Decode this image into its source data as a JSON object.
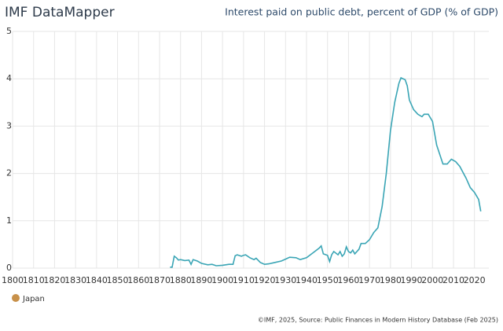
{
  "chart_data": {
    "type": "line",
    "title": "IMF DataMapper",
    "subtitle": "Interest paid on public debt, percent of GDP (% of GDP)",
    "source": "©IMF, 2025, Source: Public Finances in Modern History Database (Feb 2025)",
    "xlim": [
      1800,
      2024
    ],
    "xticks": [
      1800,
      1810,
      1820,
      1830,
      1840,
      1850,
      1860,
      1870,
      1880,
      1890,
      1900,
      1910,
      1920,
      1930,
      1940,
      1950,
      1960,
      1970,
      1980,
      1990,
      2000,
      2010,
      2020
    ],
    "ylim": [
      0,
      5
    ],
    "yticks": [
      0,
      1,
      2,
      3,
      4,
      5
    ],
    "grid": true,
    "x": [
      1875,
      1876,
      1877,
      1878,
      1879,
      1880,
      1882,
      1884,
      1885,
      1886,
      1888,
      1890,
      1893,
      1895,
      1897,
      1900,
      1903,
      1905,
      1906,
      1907,
      1909,
      1910,
      1911,
      1913,
      1915,
      1916,
      1918,
      1920,
      1922,
      1925,
      1928,
      1930,
      1932,
      1935,
      1937,
      1940,
      1943,
      1946,
      1947,
      1948,
      1950,
      1951,
      1952,
      1953,
      1955,
      1956,
      1957,
      1958,
      1959,
      1960,
      1961,
      1962,
      1963,
      1965,
      1966,
      1968,
      1970,
      1972,
      1974,
      1976,
      1978,
      1980,
      1982,
      1984,
      1985,
      1987,
      1988,
      1989,
      1991,
      1993,
      1995,
      1996,
      1998,
      2000,
      2002,
      2005,
      2007,
      2009,
      2011,
      2013,
      2016,
      2018,
      2020,
      2022,
      2023
    ],
    "series": [
      {
        "name": "Japan",
        "color": "#3aa5b5",
        "legend_color": "#c8914a",
        "values": [
          0.02,
          0.02,
          0.25,
          0.22,
          0.17,
          0.18,
          0.16,
          0.17,
          0.08,
          0.18,
          0.15,
          0.1,
          0.07,
          0.08,
          0.05,
          0.06,
          0.08,
          0.08,
          0.26,
          0.28,
          0.25,
          0.27,
          0.28,
          0.22,
          0.18,
          0.21,
          0.12,
          0.08,
          0.09,
          0.12,
          0.15,
          0.19,
          0.23,
          0.22,
          0.18,
          0.22,
          0.32,
          0.42,
          0.47,
          0.3,
          0.27,
          0.14,
          0.28,
          0.35,
          0.28,
          0.35,
          0.25,
          0.3,
          0.45,
          0.35,
          0.32,
          0.38,
          0.3,
          0.4,
          0.52,
          0.52,
          0.6,
          0.75,
          0.85,
          1.3,
          2.0,
          2.9,
          3.5,
          3.9,
          4.02,
          3.98,
          3.85,
          3.55,
          3.35,
          3.25,
          3.2,
          3.25,
          3.25,
          3.1,
          2.6,
          2.2,
          2.2,
          2.3,
          2.25,
          2.15,
          1.9,
          1.7,
          1.6,
          1.45,
          1.2
        ]
      }
    ]
  }
}
